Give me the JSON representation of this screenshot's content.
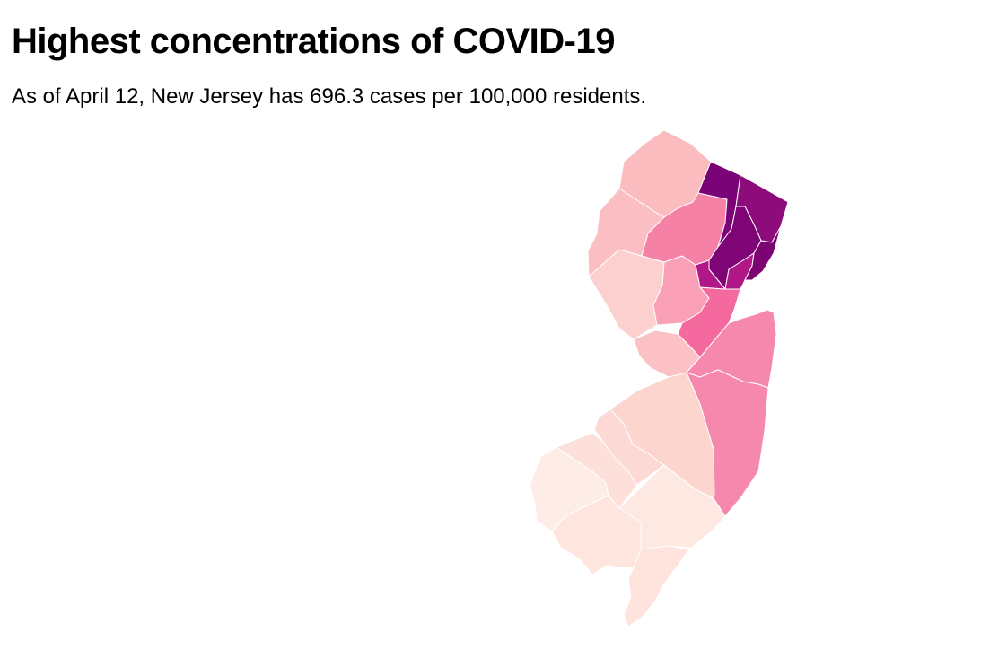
{
  "header": {
    "title": "Highest concentrations of COVID-19",
    "subtitle": "As of April 12, New Jersey has 696.3 cases per 100,000 residents."
  },
  "map": {
    "region": "New Jersey",
    "level": "county",
    "colors": {
      "bergen": "#8e0b7c",
      "passaic": "#7b0378",
      "essex": "#7f0476",
      "hudson": "#7c0472",
      "union": "#b01787",
      "morris": "#f582a6",
      "middlesex": "#f56a9e",
      "monmouth": "#f788ad",
      "ocean": "#f788ad",
      "somerset": "#f99fb6",
      "sussex": "#fbbcc0",
      "warren": "#fbbfc3",
      "hunterdon": "#fbd0cf",
      "mercer": "#fbc1c5",
      "burlington": "#fcd5cf",
      "camden": "#fcd9d4",
      "gloucester": "#fde0da",
      "salem": "#feede7",
      "cumberland": "#fee6df",
      "atlantic": "#fee9e2",
      "capemay": "#fee4dd",
      "stroke": "#ffffff"
    }
  }
}
